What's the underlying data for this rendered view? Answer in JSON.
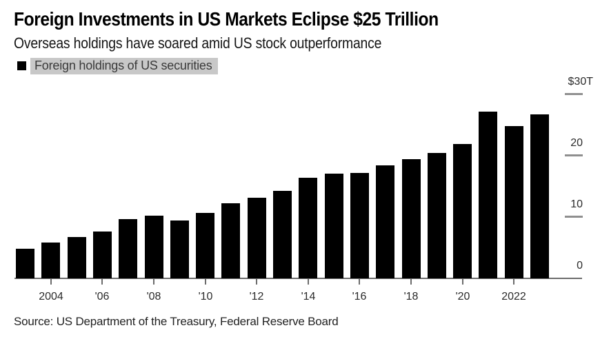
{
  "header": {
    "title": "Foreign Investments in US Markets Eclipse $25 Trillion",
    "subtitle": "Overseas holdings have soared amid US stock outperformance"
  },
  "legend": {
    "label": "Foreign holdings of US securities",
    "swatch_color": "#000000",
    "highlight_color": "#c8c8c8"
  },
  "source": "Source: US Department of the Treasury, Federal Reserve Board",
  "colors": {
    "bar": "#000000",
    "axis_line": "#6b6b6b",
    "y_tick": "#8f8f8f",
    "axis_text": "#2a2a2a",
    "background": "#ffffff"
  },
  "chart_data": {
    "type": "bar",
    "title": "Foreign Investments in US Markets Eclipse $25 Trillion",
    "subtitle": "Overseas holdings have soared amid US stock outperformance",
    "series_name": "Foreign holdings of US securities",
    "unit": "USD trillions",
    "categories": [
      2003,
      2004,
      2005,
      2006,
      2007,
      2008,
      2009,
      2010,
      2011,
      2012,
      2013,
      2014,
      2015,
      2016,
      2017,
      2018,
      2019,
      2020,
      2021,
      2022,
      2023
    ],
    "values": [
      4.8,
      5.8,
      6.7,
      7.6,
      9.7,
      10.2,
      9.5,
      10.7,
      12.3,
      13.2,
      14.3,
      16.4,
      17.1,
      17.2,
      18.4,
      19.4,
      20.5,
      21.9,
      27.2,
      24.9,
      26.8
    ],
    "ylim": [
      0,
      30
    ],
    "y_ticks": [
      0,
      10,
      20,
      30
    ],
    "y_tick_labels": [
      "0",
      "10",
      "20",
      "$30T"
    ],
    "x_ticks": [
      {
        "label": "2004",
        "year": 2004
      },
      {
        "label": "'06",
        "year": 2006
      },
      {
        "label": "'08",
        "year": 2008
      },
      {
        "label": "'10",
        "year": 2010
      },
      {
        "label": "'12",
        "year": 2012
      },
      {
        "label": "'14",
        "year": 2014
      },
      {
        "label": "'16",
        "year": 2016
      },
      {
        "label": "'18",
        "year": 2018
      },
      {
        "label": "'20",
        "year": 2020
      },
      {
        "label": "2022",
        "year": 2022
      }
    ],
    "grid": false,
    "legend_position": "top-left",
    "y_axis_side": "right",
    "bar_color": "#000000"
  }
}
